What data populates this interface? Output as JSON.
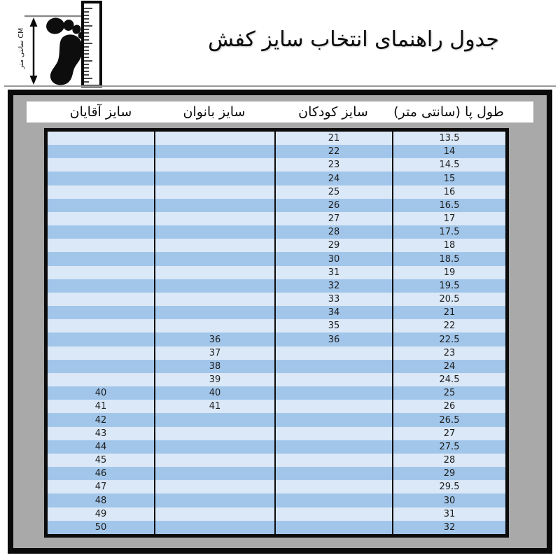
{
  "title": "جدول راهنمای انتخاب سایز کفش",
  "icon": {
    "name": "foot-measure-icon",
    "cm_label": "CM سانتی متر"
  },
  "colors": {
    "row_light": "#dbe8f7",
    "row_dark": "#a2c6ea",
    "panel_gray": "#a9a9a9",
    "border_black": "#0a0a0a",
    "header_bg": "#ffffff"
  },
  "chart_data": {
    "type": "table",
    "title": "جدول راهنمای انتخاب سایز کفش",
    "columns": [
      {
        "key": "men",
        "label": "سایز آقایان"
      },
      {
        "key": "women",
        "label": "سایز بانوان"
      },
      {
        "key": "children",
        "label": "سایز کودکان"
      },
      {
        "key": "foot",
        "label": "طول پا (سانتی متر)"
      }
    ],
    "rows": [
      {
        "men": "",
        "women": "",
        "children": "21",
        "foot": "13.5"
      },
      {
        "men": "",
        "women": "",
        "children": "22",
        "foot": "14"
      },
      {
        "men": "",
        "women": "",
        "children": "23",
        "foot": "14.5"
      },
      {
        "men": "",
        "women": "",
        "children": "24",
        "foot": "15"
      },
      {
        "men": "",
        "women": "",
        "children": "25",
        "foot": "16"
      },
      {
        "men": "",
        "women": "",
        "children": "26",
        "foot": "16.5"
      },
      {
        "men": "",
        "women": "",
        "children": "27",
        "foot": "17"
      },
      {
        "men": "",
        "women": "",
        "children": "28",
        "foot": "17.5"
      },
      {
        "men": "",
        "women": "",
        "children": "29",
        "foot": "18"
      },
      {
        "men": "",
        "women": "",
        "children": "30",
        "foot": "18.5"
      },
      {
        "men": "",
        "women": "",
        "children": "31",
        "foot": "19"
      },
      {
        "men": "",
        "women": "",
        "children": "32",
        "foot": "19.5"
      },
      {
        "men": "",
        "women": "",
        "children": "33",
        "foot": "20.5"
      },
      {
        "men": "",
        "women": "",
        "children": "34",
        "foot": "21"
      },
      {
        "men": "",
        "women": "",
        "children": "35",
        "foot": "22"
      },
      {
        "men": "",
        "women": "36",
        "children": "36",
        "foot": "22.5"
      },
      {
        "men": "",
        "women": "37",
        "children": "",
        "foot": "23"
      },
      {
        "men": "",
        "women": "38",
        "children": "",
        "foot": "24"
      },
      {
        "men": "",
        "women": "39",
        "children": "",
        "foot": "24.5"
      },
      {
        "men": "40",
        "women": "40",
        "children": "",
        "foot": "25"
      },
      {
        "men": "41",
        "women": "41",
        "children": "",
        "foot": "26"
      },
      {
        "men": "42",
        "women": "",
        "children": "",
        "foot": "26.5"
      },
      {
        "men": "43",
        "women": "",
        "children": "",
        "foot": "27"
      },
      {
        "men": "44",
        "women": "",
        "children": "",
        "foot": "27.5"
      },
      {
        "men": "45",
        "women": "",
        "children": "",
        "foot": "28"
      },
      {
        "men": "46",
        "women": "",
        "children": "",
        "foot": "29"
      },
      {
        "men": "47",
        "women": "",
        "children": "",
        "foot": "29.5"
      },
      {
        "men": "48",
        "women": "",
        "children": "",
        "foot": "30"
      },
      {
        "men": "49",
        "women": "",
        "children": "",
        "foot": "31"
      },
      {
        "men": "50",
        "women": "",
        "children": "",
        "foot": "32"
      }
    ]
  }
}
